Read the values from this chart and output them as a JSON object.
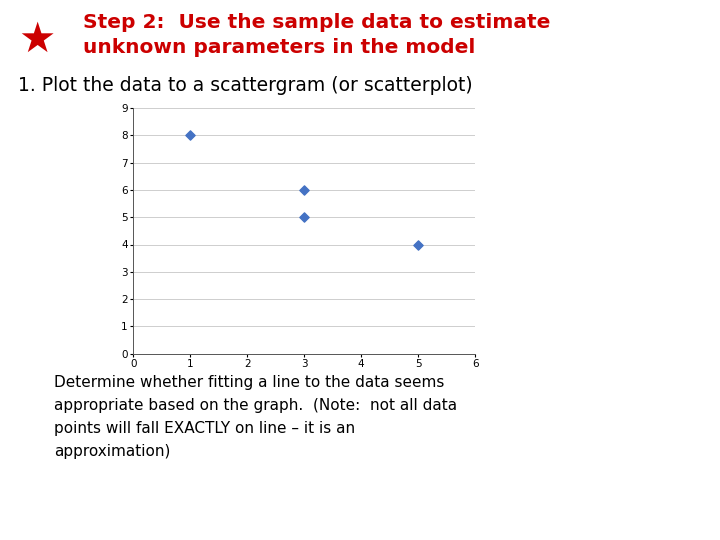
{
  "title_line1": "Step 2:  Use the sample data to estimate",
  "title_line2": "unknown parameters in the model",
  "subtitle": "1. Plot the data to a scattergram (or scatterplot)",
  "scatter_x": [
    1,
    3,
    3,
    5
  ],
  "scatter_y": [
    8,
    6,
    5,
    4
  ],
  "scatter_color": "#4472C4",
  "xlim": [
    0,
    6
  ],
  "ylim": [
    0,
    9
  ],
  "xticks": [
    0,
    1,
    2,
    3,
    4,
    5,
    6
  ],
  "yticks": [
    0,
    1,
    2,
    3,
    4,
    5,
    6,
    7,
    8,
    9
  ],
  "title_color": "#CC0000",
  "subtitle_color": "#000000",
  "body_text": "Determine whether fitting a line to the data seems\nappropriate based on the graph.  (Note:  not all data\npoints will fall EXACTLY on line – it is an\napproximation)",
  "body_color": "#000000",
  "background_color": "#ffffff",
  "star_color": "#CC0000"
}
